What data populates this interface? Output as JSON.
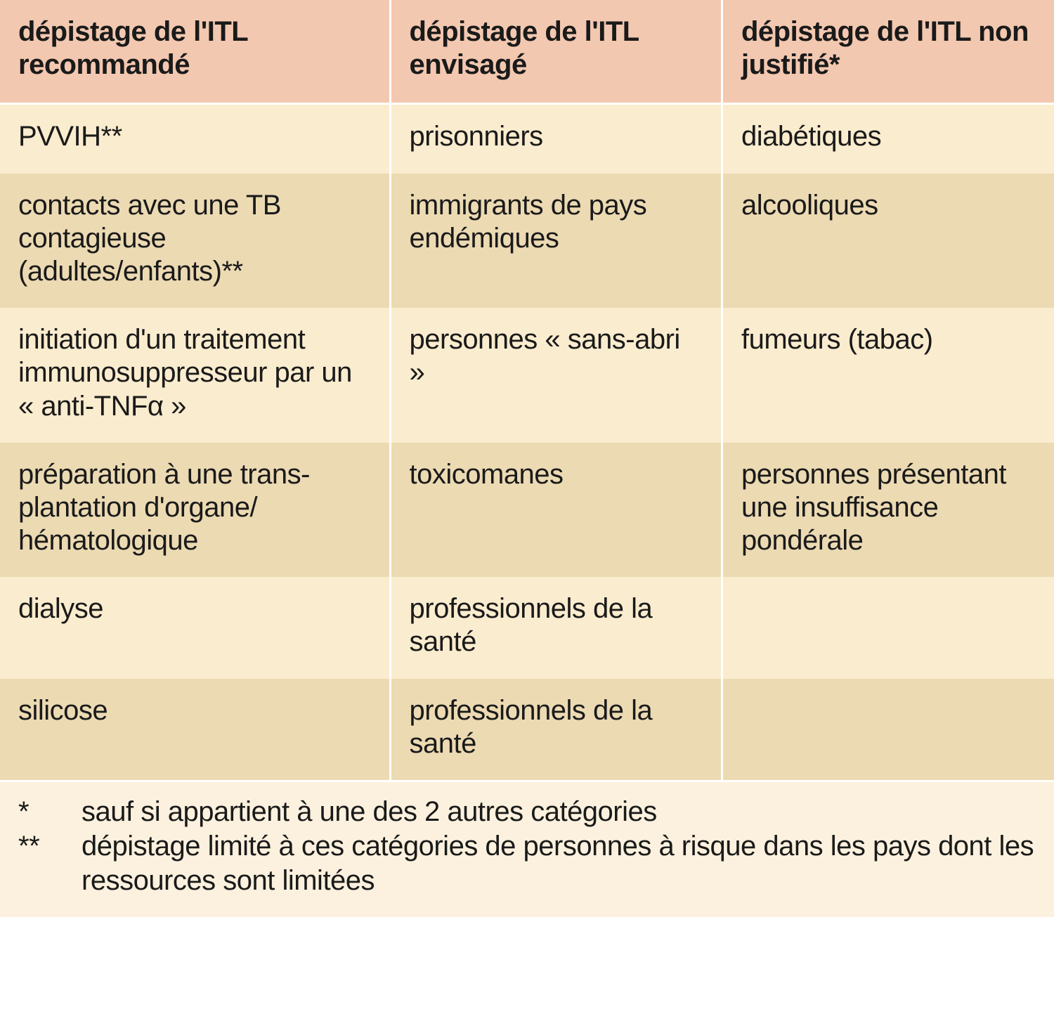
{
  "table": {
    "columns": [
      "dépistage de l'ITL recommandé",
      "dépistage de l'ITL envisagé",
      "dépistage de l'ITL non justifié*"
    ],
    "column_widths_pct": [
      37,
      31.5,
      31.5
    ],
    "rows": [
      [
        "PVVIH**",
        "prisonniers",
        "diabétiques"
      ],
      [
        "contacts avec une TB contagieuse (adultes/enfants)**",
        "immigrants de pays endémiques",
        "alcooliques"
      ],
      [
        "initiation d'un traitement immunosuppresseur par un « anti-TNFα »",
        "personnes « sans-abri »",
        "fumeurs (tabac)"
      ],
      [
        "préparation à une trans-plantation d'organe/ hématologique",
        "toxicomanes",
        "personnes présentant une insuffisance pondérale"
      ],
      [
        "dialyse",
        "professionnels de la santé",
        ""
      ],
      [
        "silicose",
        "professionnels de la santé",
        ""
      ]
    ],
    "header_bg": "#f3c8b0",
    "row_odd_bg": "#faecce",
    "row_even_bg": "#ecdab3",
    "border_color": "#ffffff",
    "text_color": "#1a1a1a",
    "font_size_pt": 30,
    "header_font_weight": 700
  },
  "footnotes": {
    "background": "#fbf1de",
    "items": [
      {
        "mark": "*",
        "text": "sauf si appartient à une des 2 autres catégories"
      },
      {
        "mark": "**",
        "text": "dépistage limité à ces catégories de personnes à risque dans les pays dont les ressources sont limitées"
      }
    ]
  }
}
